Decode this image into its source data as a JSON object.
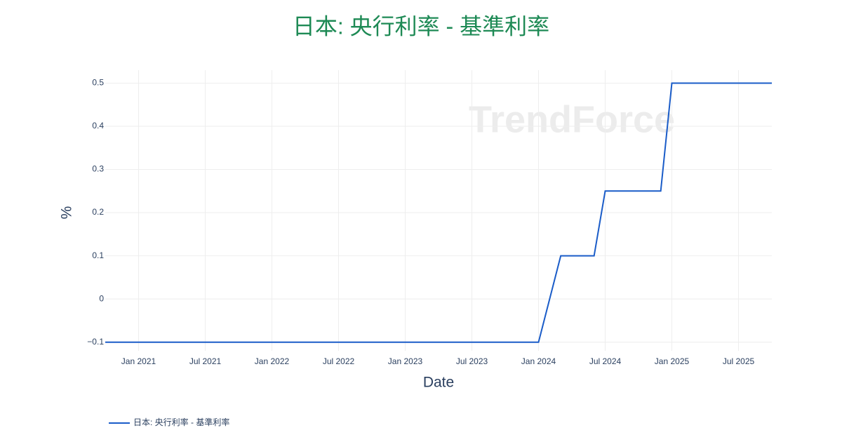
{
  "chart_data": {
    "type": "line",
    "title": "日本: 央行利率 - 基準利率",
    "x_label": "Date",
    "y_label": "%",
    "watermark": "TrendForce",
    "x": [
      "2020-10",
      "2024-01",
      "2024-03",
      "2024-06",
      "2024-07",
      "2024-12",
      "2025-01",
      "2025-10"
    ],
    "series": [
      {
        "name": "日本: 央行利率 - 基準利率",
        "color": "#1a5cc8",
        "values": [
          -0.1,
          -0.1,
          0.1,
          0.1,
          0.25,
          0.25,
          0.5,
          0.5
        ]
      }
    ],
    "xlim": [
      "2020-10",
      "2025-10"
    ],
    "xticks": [
      {
        "value": "2021-01",
        "label": "Jan 2021"
      },
      {
        "value": "2021-07",
        "label": "Jul 2021"
      },
      {
        "value": "2022-01",
        "label": "Jan 2022"
      },
      {
        "value": "2022-07",
        "label": "Jul 2022"
      },
      {
        "value": "2023-01",
        "label": "Jan 2023"
      },
      {
        "value": "2023-07",
        "label": "Jul 2023"
      },
      {
        "value": "2024-01",
        "label": "Jan 2024"
      },
      {
        "value": "2024-07",
        "label": "Jul 2024"
      },
      {
        "value": "2025-01",
        "label": "Jan 2025"
      },
      {
        "value": "2025-07",
        "label": "Jul 2025"
      }
    ],
    "ylim": [
      -0.12,
      0.53
    ],
    "yticks": [
      {
        "value": -0.1,
        "label": "−0.1"
      },
      0,
      0.1,
      0.2,
      0.3,
      0.4,
      0.5
    ],
    "grid": true,
    "legend": "bottom-left"
  }
}
